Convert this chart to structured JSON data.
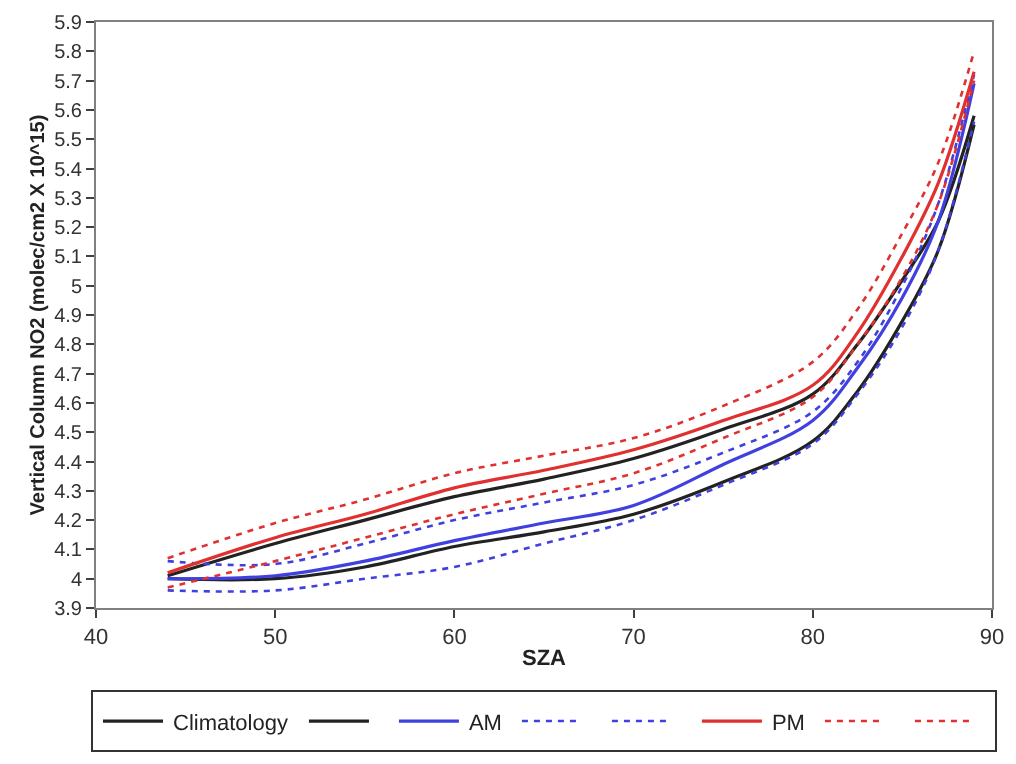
{
  "chart_data": {
    "type": "line",
    "xlabel": "SZA",
    "ylabel": "Vertical Column NO2 (molec/cm2 X 10^15)",
    "x": [
      44,
      50,
      55,
      60,
      65,
      70,
      75,
      80,
      82.5,
      85,
      87,
      89
    ],
    "series": [
      {
        "name": "Climatology",
        "color": "#222222",
        "line_style": "solid",
        "values": [
          4.01,
          4.12,
          4.2,
          4.28,
          4.34,
          4.41,
          4.51,
          4.63,
          4.8,
          5.02,
          5.22,
          5.58
        ]
      },
      {
        "color": "#222222",
        "line_style": "solid",
        "values": [
          4.0,
          4.0,
          4.04,
          4.11,
          4.16,
          4.22,
          4.33,
          4.47,
          4.64,
          4.88,
          5.12,
          5.55
        ]
      },
      {
        "name": "AM",
        "color": "#4040e0",
        "line_style": "solid",
        "values": [
          4.0,
          4.01,
          4.06,
          4.13,
          4.19,
          4.25,
          4.39,
          4.54,
          4.72,
          4.96,
          5.22,
          5.69
        ]
      },
      {
        "color": "#4040e0",
        "line_style": "dotted",
        "values": [
          4.06,
          4.05,
          4.12,
          4.2,
          4.26,
          4.32,
          4.43,
          4.57,
          4.74,
          5.0,
          5.28,
          5.72
        ]
      },
      {
        "color": "#4040e0",
        "line_style": "dotted",
        "values": [
          3.96,
          3.96,
          4.0,
          4.04,
          4.12,
          4.2,
          4.32,
          4.46,
          4.63,
          4.86,
          5.12,
          5.56
        ]
      },
      {
        "name": "PM",
        "color": "#e03030",
        "line_style": "solid",
        "values": [
          4.02,
          4.14,
          4.22,
          4.31,
          4.37,
          4.44,
          4.54,
          4.66,
          4.84,
          5.1,
          5.35,
          5.73
        ]
      },
      {
        "color": "#e03030",
        "line_style": "dotted",
        "values": [
          4.07,
          4.19,
          4.27,
          4.36,
          4.42,
          4.48,
          4.59,
          4.74,
          4.92,
          5.18,
          5.42,
          5.8
        ]
      },
      {
        "color": "#e03030",
        "line_style": "dotted",
        "values": [
          3.97,
          4.06,
          4.14,
          4.22,
          4.29,
          4.36,
          4.48,
          4.62,
          4.8,
          5.03,
          5.28,
          5.7
        ]
      }
    ],
    "xlim": [
      40,
      90
    ],
    "xticks": [
      40,
      50,
      60,
      70,
      80,
      90
    ],
    "ylim": [
      3.9,
      5.9
    ],
    "yticks": [
      3.9,
      4,
      4.1,
      4.2,
      4.3,
      4.4,
      4.5,
      4.6,
      4.7,
      4.8,
      4.9,
      5,
      5.1,
      5.2,
      5.3,
      5.4,
      5.5,
      5.6,
      5.7,
      5.8,
      5.9
    ],
    "marker": "none",
    "legend": "bottom"
  }
}
